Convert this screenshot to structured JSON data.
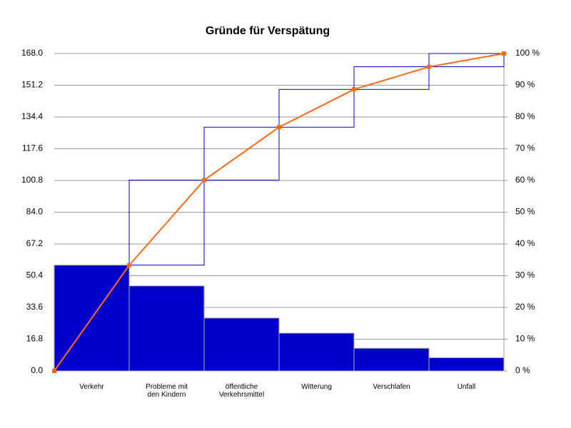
{
  "chart_data": {
    "type": "pareto",
    "title": "Gründe für Verspätung",
    "categories": [
      [
        "Verkehr"
      ],
      [
        "Probleme mit",
        "den Kindern"
      ],
      [
        "öffentliche",
        "Verkehrsmittel"
      ],
      [
        "Witterung"
      ],
      [
        "Verschlafen"
      ],
      [
        "Unfall"
      ]
    ],
    "values": [
      56,
      45,
      28,
      20,
      12,
      7
    ],
    "color": "#0000cc",
    "step_color": "#0000cc",
    "cumulative_percent": [
      0,
      33.3,
      60.1,
      76.8,
      88.7,
      95.8,
      100
    ],
    "line_color": "#ff6a13",
    "ylim": [
      0,
      168
    ],
    "yticks": [
      {
        "value": 0,
        "label": "0.0"
      },
      {
        "value": 16.8,
        "label": "16.8"
      },
      {
        "value": 33.6,
        "label": "33.6"
      },
      {
        "value": 50.4,
        "label": "50.4"
      },
      {
        "value": 67.2,
        "label": "67.2"
      },
      {
        "value": 84,
        "label": "84.0"
      },
      {
        "value": 100.8,
        "label": "100.8"
      },
      {
        "value": 117.6,
        "label": "117.6"
      },
      {
        "value": 134.4,
        "label": "134.4"
      },
      {
        "value": 151.2,
        "label": "151.2"
      },
      {
        "value": 168,
        "label": "168.0"
      }
    ],
    "y2lim": [
      0,
      100
    ],
    "y2ticks": [
      {
        "value": 0,
        "label": "0 %"
      },
      {
        "value": 10,
        "label": "10 %"
      },
      {
        "value": 20,
        "label": "20 %"
      },
      {
        "value": 30,
        "label": "30 %"
      },
      {
        "value": 40,
        "label": "40 %"
      },
      {
        "value": 50,
        "label": "50 %"
      },
      {
        "value": 60,
        "label": "60 %"
      },
      {
        "value": 70,
        "label": "70 %"
      },
      {
        "value": 80,
        "label": "80 %"
      },
      {
        "value": 90,
        "label": "90 %"
      },
      {
        "value": 100,
        "label": "100 %"
      }
    ],
    "grid": true
  }
}
